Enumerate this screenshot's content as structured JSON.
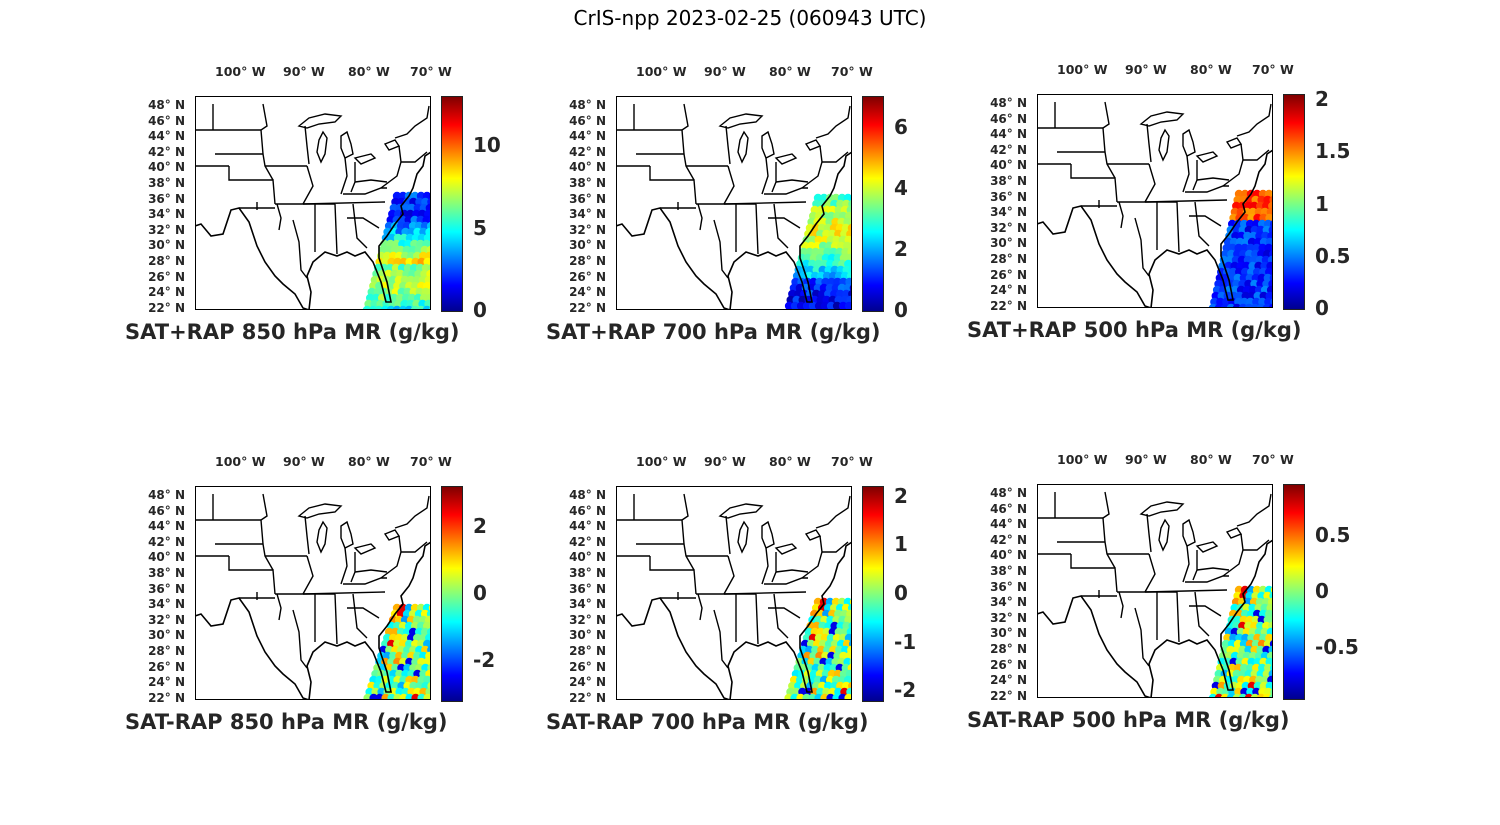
{
  "title": "CrIS-npp 2023-02-25 (060943 UTC)",
  "lon_labels": [
    "100° W",
    "90° W",
    "80° W",
    "70° W"
  ],
  "lat_labels": [
    "48° N",
    "46° N",
    "44° N",
    "42° N",
    "40° N",
    "38° N",
    "36° N",
    "34° N",
    "32° N",
    "30° N",
    "28° N",
    "26° N",
    "24° N",
    "22° N"
  ],
  "colormap": "jet",
  "panels": [
    {
      "label": "SAT+RAP 850 hPa MR (g/kg)",
      "cbar_ticks": [
        "10",
        "5",
        "0"
      ],
      "cbar_range": [
        0,
        13
      ],
      "field": "sum850"
    },
    {
      "label": "SAT+RAP 700 hPa MR (g/kg)",
      "cbar_ticks": [
        "6",
        "4",
        "2",
        "0"
      ],
      "cbar_range": [
        0,
        7
      ],
      "field": "sum700"
    },
    {
      "label": "SAT+RAP 500 hPa MR (g/kg)",
      "cbar_ticks": [
        "2",
        "1.5",
        "1",
        "0.5",
        "0"
      ],
      "cbar_range": [
        0,
        2.05
      ],
      "field": "sum500"
    },
    {
      "label": "SAT-RAP 850 hPa MR (g/kg)",
      "cbar_ticks": [
        "2",
        "0",
        "-2"
      ],
      "cbar_range": [
        -3.2,
        3.2
      ],
      "field": "diff850"
    },
    {
      "label": "SAT-RAP 700 hPa MR (g/kg)",
      "cbar_ticks": [
        "2",
        "1",
        "0",
        "-1",
        "-2"
      ],
      "cbar_range": [
        -2.2,
        2.2
      ],
      "field": "diff700"
    },
    {
      "label": "SAT-RAP 500 hPa MR (g/kg)",
      "cbar_ticks": [
        "0.5",
        "0",
        "-0.5"
      ],
      "cbar_range": [
        -0.95,
        0.95
      ],
      "field": "diff500"
    }
  ]
}
